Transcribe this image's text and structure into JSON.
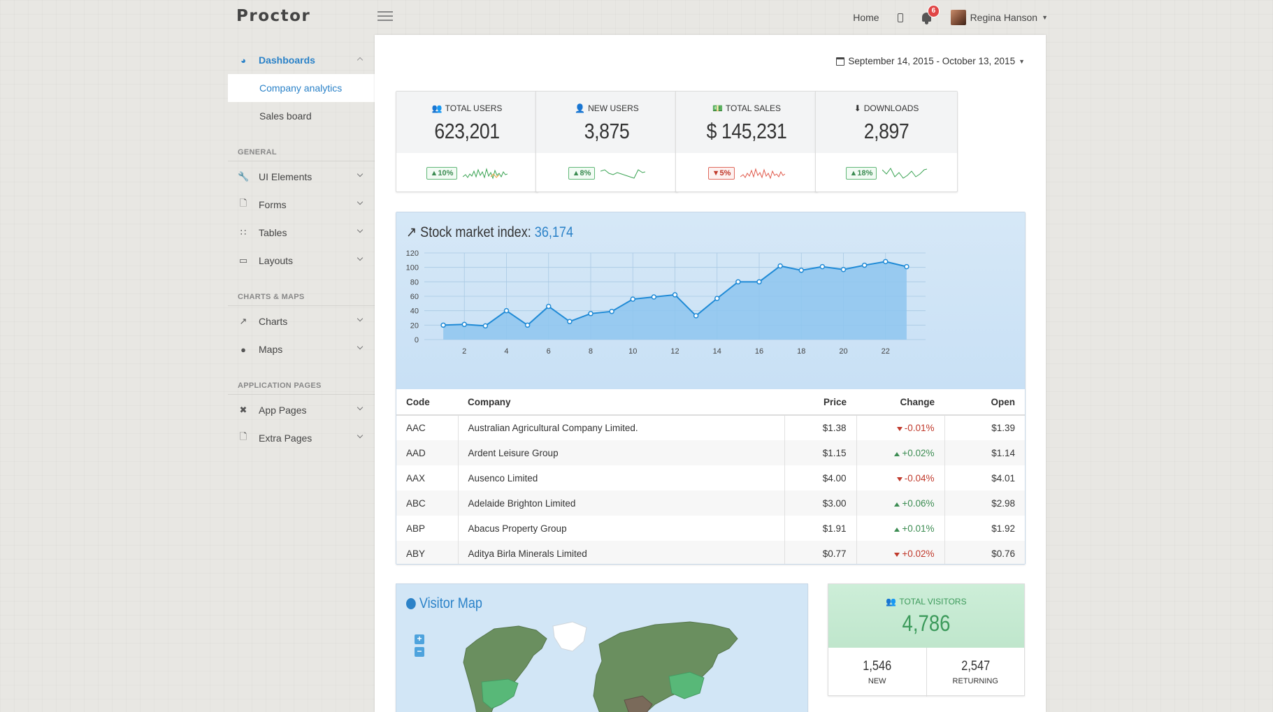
{
  "brand": {
    "logo": "Proctor"
  },
  "topnav": {
    "home": "Home",
    "notifications_count": "6",
    "user_name": "Regina Hanson"
  },
  "sidebar": {
    "dashboards": "Dashboards",
    "sub_items": [
      "Company analytics",
      "Sales board"
    ],
    "sections": {
      "general": "GENERAL",
      "charts_maps": "CHARTS & MAPS",
      "application_pages": "APPLICATION PAGES"
    },
    "general_items": [
      "UI Elements",
      "Forms",
      "Tables",
      "Layouts"
    ],
    "charts_items": [
      "Charts",
      "Maps"
    ],
    "app_items": [
      "App Pages",
      "Extra Pages"
    ]
  },
  "daterange": "September 14, 2015 - October 13, 2015",
  "stats": [
    {
      "label": "TOTAL USERS",
      "value": "623,201",
      "trend": "10%",
      "dir": "up"
    },
    {
      "label": "NEW USERS",
      "value": "3,875",
      "trend": "8%",
      "dir": "up"
    },
    {
      "label": "TOTAL SALES",
      "value": "$ 145,231",
      "trend": "5%",
      "dir": "down"
    },
    {
      "label": "DOWNLOADS",
      "value": "2,897",
      "trend": "18%",
      "dir": "up"
    }
  ],
  "market": {
    "title": "Stock market index:",
    "index_value": "36,174"
  },
  "chart_data": {
    "type": "area",
    "title": "Stock market index: 36,174",
    "x": [
      1,
      2,
      3,
      4,
      5,
      6,
      7,
      8,
      9,
      10,
      11,
      12,
      13,
      14,
      15,
      16,
      17,
      18,
      19,
      20,
      21,
      22,
      23
    ],
    "values": [
      20,
      21,
      19,
      40,
      20,
      46,
      25,
      36,
      39,
      56,
      59,
      62,
      33,
      57,
      80,
      80,
      102,
      96,
      101,
      97,
      103,
      108,
      101
    ],
    "xticks": [
      2,
      4,
      6,
      8,
      10,
      12,
      14,
      16,
      18,
      20,
      22
    ],
    "yticks": [
      0,
      20,
      40,
      60,
      80,
      100,
      120
    ],
    "xlim": [
      0.1,
      23.9
    ],
    "ylim": [
      0,
      120
    ],
    "xlabel": "",
    "ylabel": "",
    "grid": true,
    "colors": {
      "line": "#1f8ad6",
      "fill": "#8ec6ef"
    }
  },
  "table": {
    "headers": [
      "Code",
      "Company",
      "Price",
      "Change",
      "Open"
    ],
    "rows": [
      {
        "code": "AAC",
        "company": "Australian Agricultural Company Limited.",
        "price": "$1.38",
        "change": "-0.01%",
        "dir": "down",
        "open": "$1.39"
      },
      {
        "code": "AAD",
        "company": "Ardent Leisure Group",
        "price": "$1.15",
        "change": "+0.02%",
        "dir": "up",
        "open": "$1.14"
      },
      {
        "code": "AAX",
        "company": "Ausenco Limited",
        "price": "$4.00",
        "change": "-0.04%",
        "dir": "down",
        "open": "$4.01"
      },
      {
        "code": "ABC",
        "company": "Adelaide Brighton Limited",
        "price": "$3.00",
        "change": "+0.06%",
        "dir": "up",
        "open": "$2.98"
      },
      {
        "code": "ABP",
        "company": "Abacus Property Group",
        "price": "$1.91",
        "change": "+0.01%",
        "dir": "up",
        "open": "$1.92"
      },
      {
        "code": "ABY",
        "company": "Aditya Birla Minerals Limited",
        "price": "$0.77",
        "change": "+0.02%",
        "dir": "down",
        "open": "$0.76"
      }
    ]
  },
  "visitor_map": {
    "title": "Visitor Map",
    "zoom_in": "+",
    "zoom_out": "−"
  },
  "visitors": {
    "label": "TOTAL VISITORS",
    "value": "4,786",
    "new_value": "1,546",
    "new_label": "NEW",
    "returning_value": "2,547",
    "returning_label": "RETURNING"
  },
  "colors": {
    "accent": "#2b82c8",
    "positive": "#3c8c52",
    "negative": "#c0392b",
    "notification": "#e04646"
  }
}
